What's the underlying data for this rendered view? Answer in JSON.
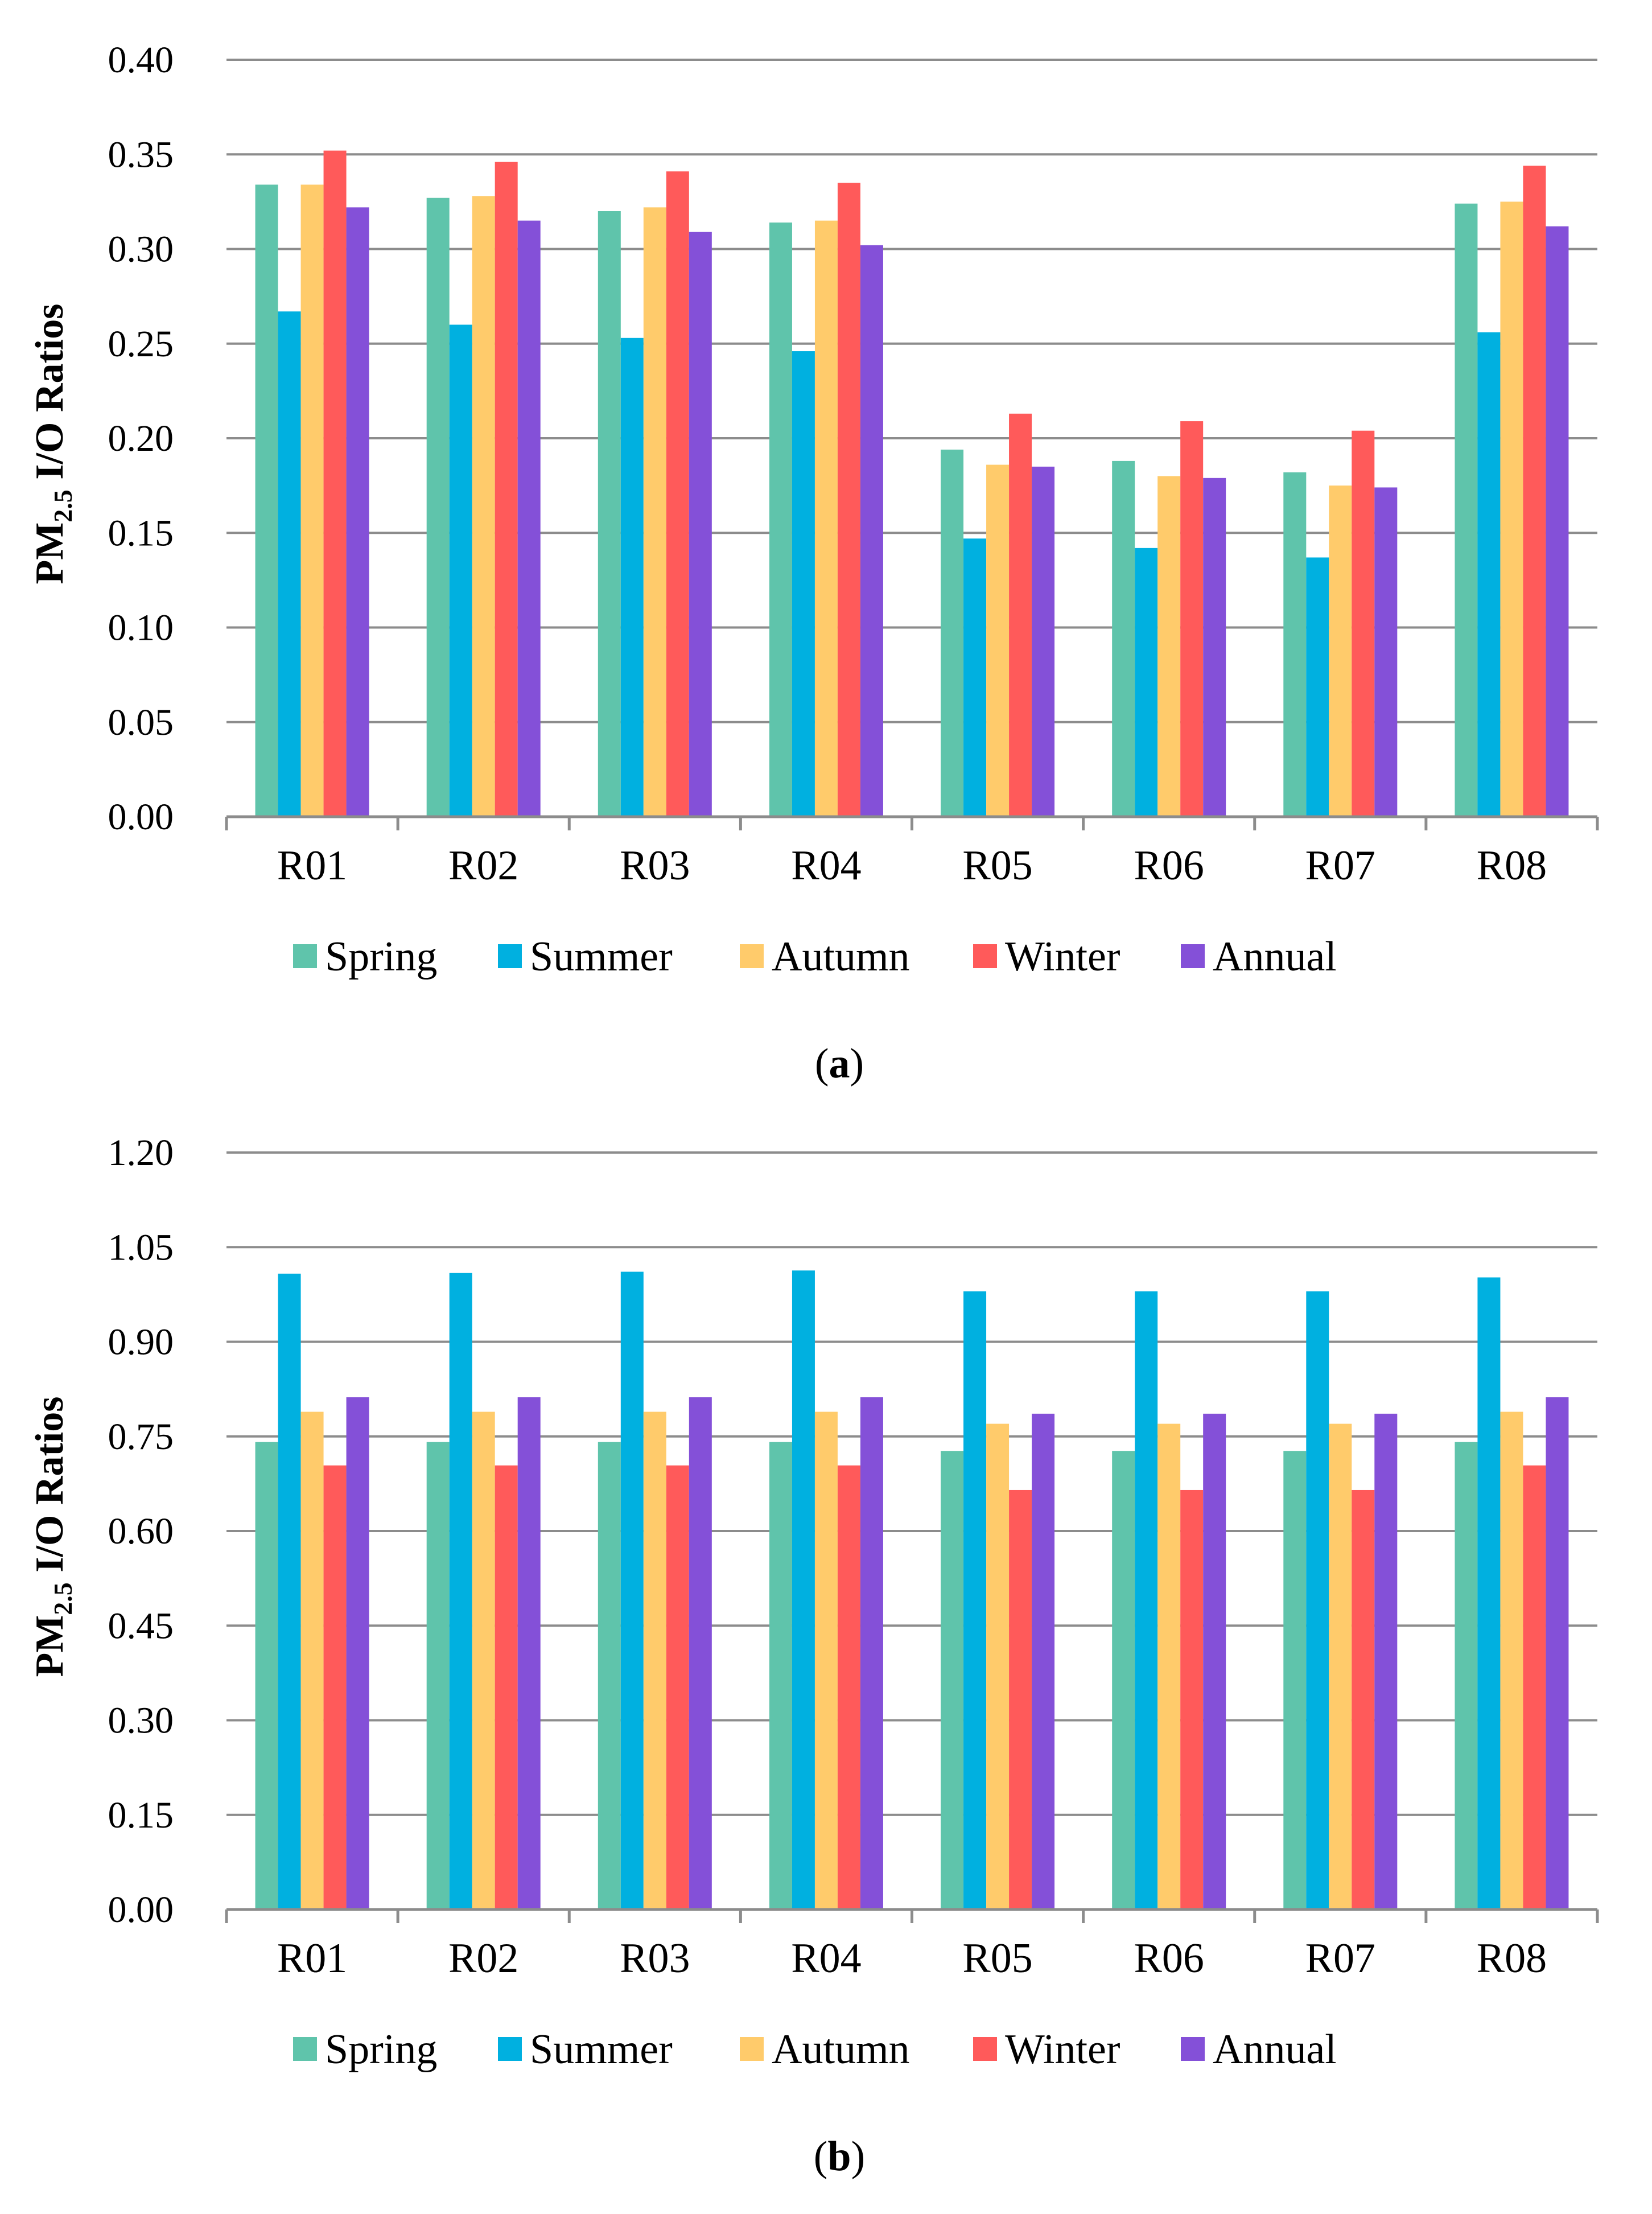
{
  "chart_data": [
    {
      "type": "bar",
      "panel_label": "a",
      "ylabel_main": "PM",
      "ylabel_sub": "2.5",
      "ylabel_rest": " I/O Ratios",
      "categories": [
        "R01",
        "R02",
        "R03",
        "R04",
        "R05",
        "R06",
        "R07",
        "R08"
      ],
      "ylim": [
        0,
        0.4
      ],
      "yticks": [
        "0.00",
        "0.05",
        "0.10",
        "0.15",
        "0.20",
        "0.25",
        "0.30",
        "0.35",
        "0.40"
      ],
      "legend_position": "bottom",
      "grid": true,
      "series": [
        {
          "name": "Spring",
          "color": "#5fc4ab",
          "values": [
            0.334,
            0.327,
            0.32,
            0.314,
            0.194,
            0.188,
            0.182,
            0.324
          ]
        },
        {
          "name": "Summer",
          "color": "#00b0e0",
          "values": [
            0.267,
            0.26,
            0.253,
            0.246,
            0.147,
            0.142,
            0.137,
            0.256
          ]
        },
        {
          "name": "Autumn",
          "color": "#ffcb6b",
          "values": [
            0.334,
            0.328,
            0.322,
            0.315,
            0.186,
            0.18,
            0.175,
            0.325
          ]
        },
        {
          "name": "Winter",
          "color": "#ff5a5a",
          "values": [
            0.352,
            0.346,
            0.341,
            0.335,
            0.213,
            0.209,
            0.204,
            0.344
          ]
        },
        {
          "name": "Annual",
          "color": "#8450d8",
          "values": [
            0.322,
            0.315,
            0.309,
            0.302,
            0.185,
            0.179,
            0.174,
            0.312
          ]
        }
      ]
    },
    {
      "type": "bar",
      "panel_label": "b",
      "ylabel_main": "PM",
      "ylabel_sub": "2.5",
      "ylabel_rest": " I/O Ratios",
      "categories": [
        "R01",
        "R02",
        "R03",
        "R04",
        "R05",
        "R06",
        "R07",
        "R08"
      ],
      "ylim": [
        0,
        1.2
      ],
      "yticks": [
        "0.00",
        "0.15",
        "0.30",
        "0.45",
        "0.60",
        "0.75",
        "0.90",
        "1.05",
        "1.20"
      ],
      "legend_position": "bottom",
      "grid": true,
      "series": [
        {
          "name": "Spring",
          "color": "#5fc4ab",
          "values": [
            0.741,
            0.741,
            0.741,
            0.741,
            0.727,
            0.727,
            0.727,
            0.741
          ]
        },
        {
          "name": "Summer",
          "color": "#00b0e0",
          "values": [
            1.008,
            1.009,
            1.011,
            1.013,
            0.98,
            0.98,
            0.98,
            1.002
          ]
        },
        {
          "name": "Autumn",
          "color": "#ffcb6b",
          "values": [
            0.789,
            0.789,
            0.789,
            0.789,
            0.77,
            0.77,
            0.77,
            0.789
          ]
        },
        {
          "name": "Winter",
          "color": "#ff5a5a",
          "values": [
            0.704,
            0.704,
            0.704,
            0.704,
            0.665,
            0.665,
            0.665,
            0.704
          ]
        },
        {
          "name": "Annual",
          "color": "#8450d8",
          "values": [
            0.812,
            0.812,
            0.812,
            0.812,
            0.786,
            0.786,
            0.786,
            0.812
          ]
        }
      ]
    }
  ]
}
